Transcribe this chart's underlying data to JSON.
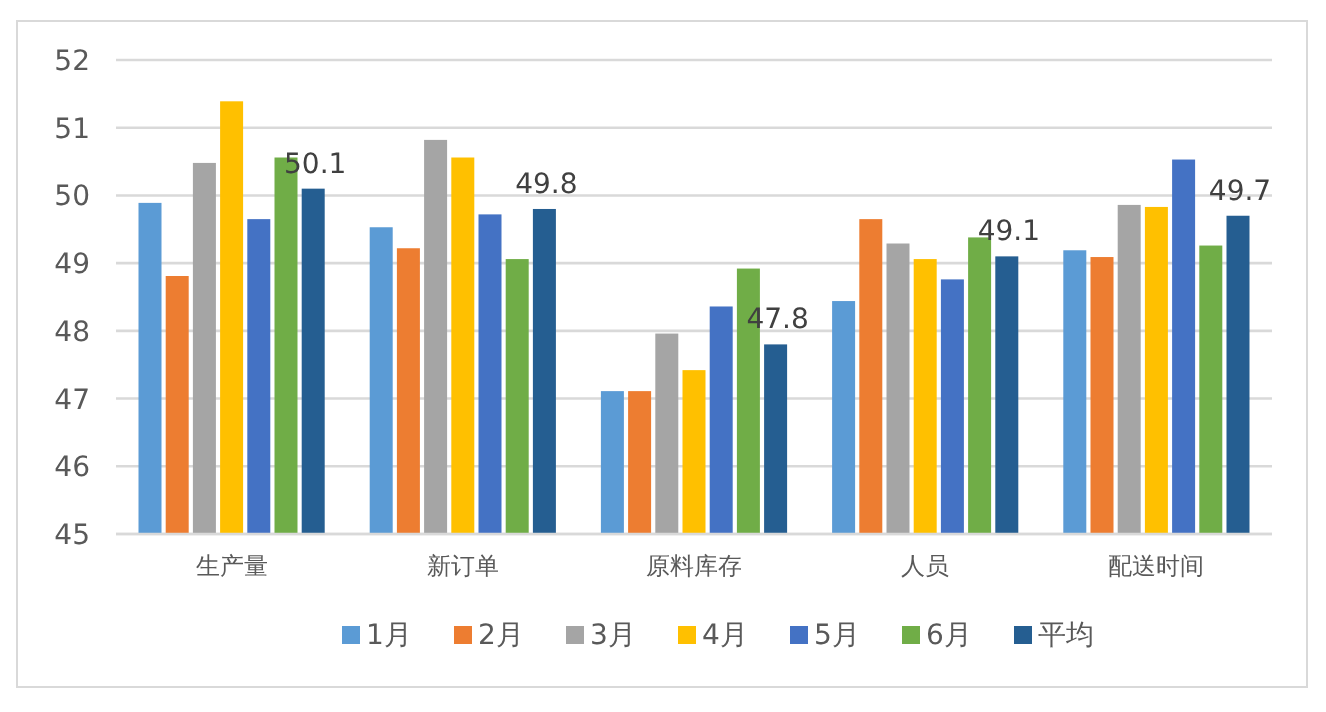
{
  "chart_data": {
    "type": "bar",
    "categories": [
      "生产量",
      "新订单",
      "原料库存",
      "人员",
      "配送时间"
    ],
    "series": [
      {
        "name": "1月",
        "color": "#5b9bd5",
        "values": [
          49.89,
          49.53,
          47.11,
          48.44,
          49.19
        ]
      },
      {
        "name": "2月",
        "color": "#ed7d31",
        "values": [
          48.81,
          49.22,
          47.11,
          49.65,
          49.09
        ]
      },
      {
        "name": "3月",
        "color": "#a5a5a5",
        "values": [
          50.48,
          50.82,
          47.96,
          49.29,
          49.86
        ]
      },
      {
        "name": "4月",
        "color": "#ffc000",
        "values": [
          51.39,
          50.56,
          47.42,
          49.06,
          49.83
        ]
      },
      {
        "name": "5月",
        "color": "#4472c4",
        "values": [
          49.65,
          49.72,
          48.36,
          48.76,
          50.53
        ]
      },
      {
        "name": "6月",
        "color": "#70ad47",
        "values": [
          50.56,
          49.06,
          48.92,
          49.38,
          49.26
        ]
      },
      {
        "name": "平均",
        "color": "#255e91",
        "values": [
          50.1,
          49.8,
          47.8,
          49.1,
          49.7
        ],
        "value_labels": [
          "50.1",
          "49.8",
          "47.8",
          "49.1",
          "49.7"
        ]
      }
    ],
    "ylim": [
      45,
      52
    ],
    "yticks": [
      45,
      46,
      47,
      48,
      49,
      50,
      51,
      52
    ],
    "grid": "y",
    "legend": "bottom"
  }
}
